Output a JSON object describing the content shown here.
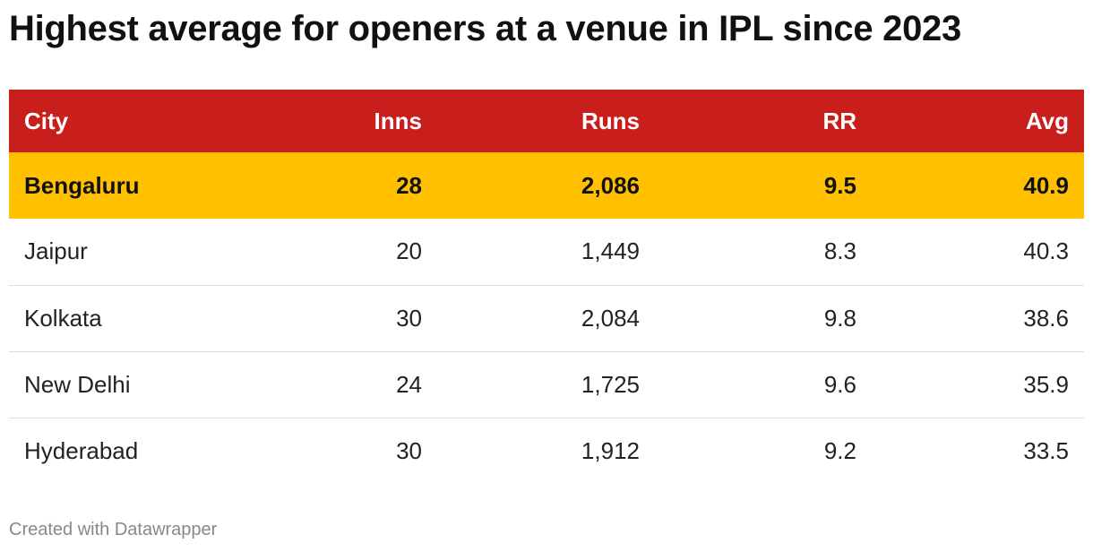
{
  "title": "Highest average for openers at a venue in IPL since 2023",
  "table": {
    "columns": [
      "City",
      "Inns",
      "Runs",
      "RR",
      "Avg"
    ],
    "rows": [
      [
        "Bengaluru",
        "28",
        "2,086",
        "9.5",
        "40.9"
      ],
      [
        "Jaipur",
        "20",
        "1,449",
        "8.3",
        "40.3"
      ],
      [
        "Kolkata",
        "30",
        "2,084",
        "9.8",
        "38.6"
      ],
      [
        "New Delhi",
        "24",
        "1,725",
        "9.6",
        "35.9"
      ],
      [
        "Hyderabad",
        "30",
        "1,912",
        "9.2",
        "33.5"
      ]
    ]
  },
  "footer": "Created with Datawrapper"
}
